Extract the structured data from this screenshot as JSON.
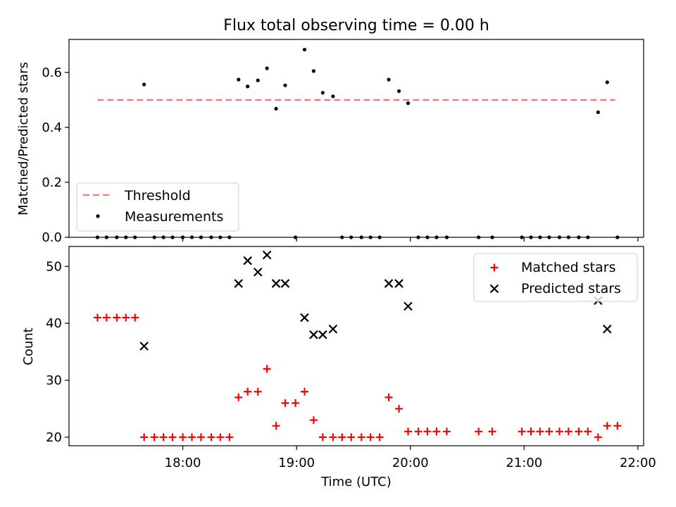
{
  "chart_data": [
    {
      "type": "scatter",
      "title": "Flux total observing time = 0.00 h",
      "xlabel": "",
      "ylabel": "Matched/Predicted stars",
      "xlim": [
        17.0,
        22.05
      ],
      "ylim": [
        0.0,
        0.72
      ],
      "yticks": [
        0.0,
        0.2,
        0.4,
        0.6
      ],
      "ytick_labels": [
        "0.0",
        "0.2",
        "0.4",
        "0.6"
      ],
      "legend": {
        "placement": "lower-left",
        "entries": [
          "Threshold",
          "Measurements"
        ]
      },
      "threshold": {
        "name": "Threshold",
        "value": 0.5,
        "x_range": [
          17.25,
          21.8
        ],
        "color": "#f77777"
      },
      "series": [
        {
          "name": "Measurements",
          "color": "#000000",
          "x": [
            17.25,
            17.33,
            17.42,
            17.5,
            17.58,
            17.66,
            17.75,
            17.83,
            17.91,
            18.0,
            18.08,
            18.16,
            18.25,
            18.33,
            18.41,
            18.49,
            18.57,
            18.66,
            18.74,
            18.82,
            18.9,
            18.99,
            19.07,
            19.15,
            19.23,
            19.32,
            19.4,
            19.48,
            19.57,
            19.65,
            19.73,
            19.81,
            19.9,
            19.98,
            20.07,
            20.15,
            20.23,
            20.32,
            20.6,
            20.72,
            20.98,
            21.06,
            21.14,
            21.22,
            21.31,
            21.39,
            21.48,
            21.56,
            21.65,
            21.73,
            21.82
          ],
          "y": [
            0,
            0,
            0,
            0,
            0,
            0.556,
            0,
            0,
            0,
            0,
            0,
            0,
            0,
            0,
            0,
            0.574,
            0.549,
            0.571,
            0.615,
            0.468,
            0.553,
            0,
            0.683,
            0.605,
            0.526,
            0.513,
            0,
            0,
            0,
            0,
            0,
            0.574,
            0.532,
            0.488,
            0,
            0,
            0,
            0,
            0,
            0,
            0,
            0,
            0,
            0,
            0,
            0,
            0,
            0,
            0.455,
            0.564,
            0
          ]
        }
      ]
    },
    {
      "type": "scatter",
      "title": "",
      "xlabel": "Time (UTC)",
      "ylabel": "Count",
      "xlim": [
        17.0,
        22.05
      ],
      "ylim": [
        18.5,
        53.5
      ],
      "xticks": [
        18,
        19,
        20,
        21,
        22
      ],
      "xtick_labels": [
        "18:00",
        "19:00",
        "20:00",
        "21:00",
        "22:00"
      ],
      "yticks": [
        20,
        30,
        40,
        50
      ],
      "ytick_labels": [
        "20",
        "30",
        "40",
        "50"
      ],
      "legend": {
        "placement": "top-right",
        "entries": [
          "Matched stars",
          "Predicted stars"
        ]
      },
      "series": [
        {
          "name": "Matched stars",
          "marker": "plus",
          "color": "#ff0000",
          "x": [
            17.25,
            17.33,
            17.42,
            17.5,
            17.58,
            17.66,
            17.75,
            17.83,
            17.91,
            18.0,
            18.08,
            18.16,
            18.25,
            18.33,
            18.41,
            18.49,
            18.57,
            18.66,
            18.74,
            18.82,
            18.9,
            18.99,
            19.07,
            19.15,
            19.23,
            19.32,
            19.4,
            19.48,
            19.57,
            19.65,
            19.73,
            19.81,
            19.9,
            19.98,
            20.07,
            20.15,
            20.23,
            20.32,
            20.6,
            20.72,
            20.98,
            21.06,
            21.14,
            21.22,
            21.31,
            21.39,
            21.48,
            21.56,
            21.65,
            21.73,
            21.82
          ],
          "y": [
            41,
            41,
            41,
            41,
            41,
            20,
            20,
            20,
            20,
            20,
            20,
            20,
            20,
            20,
            20,
            27,
            28,
            28,
            32,
            22,
            26,
            26,
            28,
            23,
            20,
            20,
            20,
            20,
            20,
            20,
            20,
            27,
            25,
            21,
            21,
            21,
            21,
            21,
            21,
            21,
            21,
            21,
            21,
            21,
            21,
            21,
            21,
            21,
            20,
            22,
            22
          ]
        },
        {
          "name": "Predicted stars",
          "marker": "x",
          "color": "#000000",
          "x": [
            17.66,
            18.49,
            18.57,
            18.66,
            18.74,
            18.82,
            18.9,
            19.07,
            19.15,
            19.23,
            19.32,
            19.81,
            19.9,
            19.98,
            21.65,
            21.73
          ],
          "y": [
            36,
            47,
            51,
            49,
            52,
            47,
            47,
            41,
            38,
            38,
            39,
            47,
            47,
            43,
            44,
            39
          ]
        }
      ]
    }
  ]
}
